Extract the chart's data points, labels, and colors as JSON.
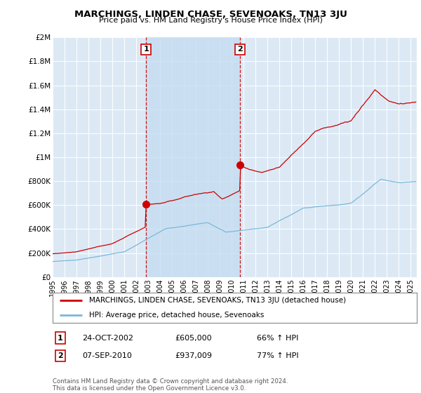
{
  "title": "MARCHINGS, LINDEN CHASE, SEVENOAKS, TN13 3JU",
  "subtitle": "Price paid vs. HM Land Registry's House Price Index (HPI)",
  "background_color": "#ffffff",
  "plot_bg_color": "#dce9f5",
  "shade_color": "#c5ddf0",
  "grid_color": "#ffffff",
  "ylim": [
    0,
    2000000
  ],
  "yticks": [
    0,
    200000,
    400000,
    600000,
    800000,
    1000000,
    1200000,
    1400000,
    1600000,
    1800000,
    2000000
  ],
  "ytick_labels": [
    "£0",
    "£200K",
    "£400K",
    "£600K",
    "£800K",
    "£1M",
    "£1.2M",
    "£1.4M",
    "£1.6M",
    "£1.8M",
    "£2M"
  ],
  "hpi_color": "#7ab8d9",
  "price_color": "#cc0000",
  "dashed_line_color": "#cc0000",
  "sale1_x": 2002.82,
  "sale1_y": 605000,
  "sale1_label": "1",
  "sale2_x": 2010.69,
  "sale2_y": 937009,
  "sale2_label": "2",
  "sale1_date": "24-OCT-2002",
  "sale1_price": "£605,000",
  "sale1_hpi": "66% ↑ HPI",
  "sale2_date": "07-SEP-2010",
  "sale2_price": "£937,009",
  "sale2_hpi": "77% ↑ HPI",
  "legend_line1": "MARCHINGS, LINDEN CHASE, SEVENOAKS, TN13 3JU (detached house)",
  "legend_line2": "HPI: Average price, detached house, Sevenoaks",
  "footer1": "Contains HM Land Registry data © Crown copyright and database right 2024.",
  "footer2": "This data is licensed under the Open Government Licence v3.0.",
  "xmin": 1995,
  "xmax": 2025.5
}
